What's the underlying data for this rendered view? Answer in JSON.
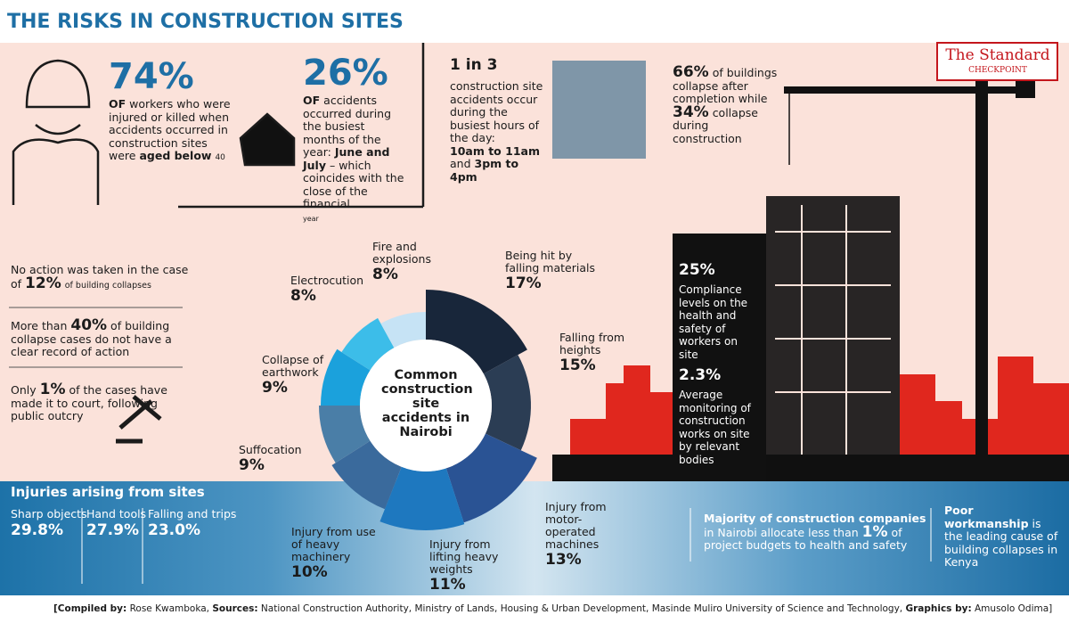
{
  "title": "THE RISKS IN CONSTRUCTION SITES",
  "logo": {
    "name": "The Standard",
    "tagline": "CHECKPOINT"
  },
  "workers": {
    "figure": "74%",
    "of": "OF",
    "text": "workers who were injured or killed when accidents occurred in construction sites were",
    "bold": "aged below",
    "age": "40"
  },
  "months": {
    "figure": "26%",
    "of": "OF",
    "text": "accidents occurred during the busiest months of the year:",
    "bold": "June and July",
    "rest": "– which coincides with the close of the financial",
    "last": "year"
  },
  "hours": {
    "figure": "1 in 3",
    "text": "construction site accidents occur during the busiest hours of the day:",
    "first": "10am to 11am",
    "and": "and",
    "second": "3pm to 4pm"
  },
  "collapse": {
    "figure_a": "66%",
    "text_a": "of buildings collapse after completion while",
    "figure_b": "34%",
    "text_b": "collapse during construction"
  },
  "notes": [
    {
      "pre": "No action was taken in the case of",
      "figure": "12%",
      "post": "of building collapses"
    },
    {
      "pre": "More than",
      "figure": "40%",
      "post": "of building collapse cases do not have a clear record of action"
    },
    {
      "pre": "Only",
      "figure": "1%",
      "post": "of the cases have made it to court, following public outcry"
    }
  ],
  "compliance": [
    {
      "figure": "25%",
      "text": "Compliance levels on the health and safety of workers on site"
    },
    {
      "figure": "2.3%",
      "text": "Average monitoring of construction works on site by relevant bodies"
    }
  ],
  "donut": {
    "center": "Common construction site accidents in Nairobi",
    "segments": [
      {
        "label": "Being hit by falling materials",
        "value": 17,
        "value_label": "17%",
        "color": "#18263a"
      },
      {
        "label": "Falling from heights",
        "value": 15,
        "value_label": "15%",
        "color": "#2b3d54"
      },
      {
        "label": "Injury from motor-operated machines",
        "value": 13,
        "value_label": "13%",
        "color": "#2a5394"
      },
      {
        "label": "Injury from lifting heavy weights",
        "value": 11,
        "value_label": "11%",
        "color": "#1e78bf"
      },
      {
        "label": "Injury from use of heavy machinery",
        "value": 10,
        "value_label": "10%",
        "color": "#3a6a9c"
      },
      {
        "label": "Suffocation",
        "value": 9,
        "value_label": "9%",
        "color": "#4a7ea7"
      },
      {
        "label": "Collapse of earthwork",
        "value": 9,
        "value_label": "9%",
        "color": "#1ba1dc"
      },
      {
        "label": "Electrocution",
        "value": 8,
        "value_label": "8%",
        "color": "#3cbde9"
      },
      {
        "label": "Fire and explosions",
        "value": 8,
        "value_label": "8%",
        "color": "#c6e3f5"
      }
    ]
  },
  "injuries": {
    "heading": "Injuries arising from sites",
    "items": [
      {
        "label": "Sharp objects",
        "value": "29.8%"
      },
      {
        "label": "Hand tools",
        "value": "27.9%"
      },
      {
        "label": "Falling and trips",
        "value": "23.0%"
      }
    ]
  },
  "budget": {
    "bold": "Majority of construction companies",
    "text": "in Nairobi allocate less than",
    "figure": "1%",
    "rest": "of project budgets to health and safety"
  },
  "workmanship": {
    "bold": "Poor workmanship",
    "text": "is the leading cause of building collapses in Kenya"
  },
  "footer": {
    "compiled_label": "[Compiled by:",
    "compiled": "Rose Kwamboka,",
    "sources_label": "Sources:",
    "sources": "National Construction Authority, Ministry of Lands, Housing & Urban Development, Masinde Muliro University of Science and Technology,",
    "graphics_label": "Graphics by:",
    "graphics": "Amusolo Odima]"
  }
}
